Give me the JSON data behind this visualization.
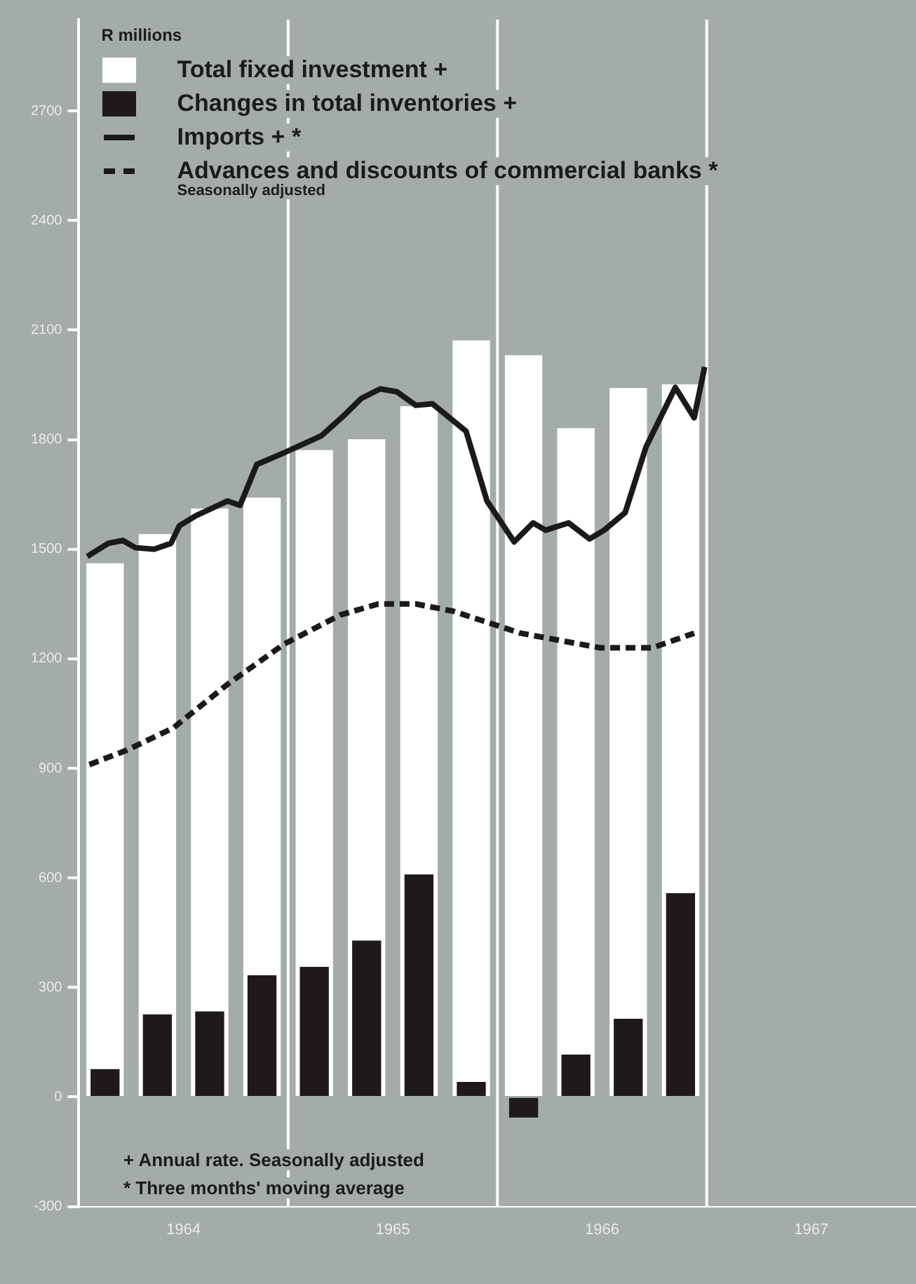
{
  "chart_data": {
    "type": "bar",
    "ylabel": "R millions",
    "xlim": [
      1964,
      1968
    ],
    "ylim": [
      -300,
      2950
    ],
    "xticks": [
      {
        "value": 1964.5,
        "label": "1964"
      },
      {
        "value": 1965.5,
        "label": "1965"
      },
      {
        "value": 1966.5,
        "label": "1966"
      },
      {
        "value": 1967.5,
        "label": "1967"
      }
    ],
    "yticks": [
      -300,
      0,
      300,
      600,
      900,
      1200,
      1500,
      1800,
      2100,
      2400,
      2700
    ],
    "series": [
      {
        "name": "Total fixed investment +",
        "color": "#ffffff",
        "x": [
          1964.125,
          1964.375,
          1964.625,
          1964.875,
          1965.125,
          1965.375,
          1965.625,
          1965.875,
          1966.125,
          1966.375,
          1966.625,
          1966.875
        ],
        "values": [
          1460,
          1540,
          1610,
          1640,
          1770,
          1800,
          1890,
          2070,
          2030,
          1830,
          1940,
          1950
        ]
      },
      {
        "name": "Changes in total inventories +",
        "color": "#1e1a1c",
        "x": [
          1964.125,
          1964.375,
          1964.625,
          1964.875,
          1965.125,
          1965.375,
          1965.625,
          1965.875,
          1966.125,
          1966.375,
          1966.625,
          1966.875
        ],
        "values": [
          75,
          225,
          233,
          332,
          355,
          427,
          608,
          40,
          -55,
          115,
          213,
          557
        ]
      },
      {
        "name": "Imports + *",
        "type": "line",
        "color": "#1a1a1a",
        "line_style": "solid",
        "x": [
          1964.04,
          1964.14,
          1964.21,
          1964.27,
          1964.36,
          1964.44,
          1964.48,
          1964.56,
          1964.71,
          1964.77,
          1964.85,
          1964.98,
          1965.16,
          1965.27,
          1965.35,
          1965.44,
          1965.52,
          1965.61,
          1965.69,
          1965.85,
          1965.95,
          1966.08,
          1966.17,
          1966.23,
          1966.34,
          1966.44,
          1966.51,
          1966.61,
          1966.71,
          1966.85,
          1966.94,
          1966.99
        ],
        "values": [
          1480,
          1516,
          1524,
          1504,
          1500,
          1516,
          1564,
          1592,
          1632,
          1620,
          1732,
          1764,
          1811,
          1868,
          1913,
          1939,
          1931,
          1894,
          1898,
          1823,
          1632,
          1520,
          1572,
          1552,
          1572,
          1528,
          1552,
          1600,
          1780,
          1943,
          1860,
          1999
        ]
      },
      {
        "name": "Advances and discounts of commercial banks *",
        "type": "line",
        "color": "#1a1a1a",
        "line_style": "dashed",
        "x": [
          1964.05,
          1964.23,
          1964.45,
          1964.71,
          1964.98,
          1965.25,
          1965.43,
          1965.61,
          1965.79,
          1966.11,
          1966.49,
          1966.74,
          1966.94
        ],
        "values": [
          910,
          950,
          1010,
          1130,
          1240,
          1320,
          1350,
          1350,
          1330,
          1270,
          1230,
          1230,
          1270
        ]
      }
    ],
    "ref_lines": [
      {
        "axis": "x",
        "value": 1965,
        "color": "#ffffff"
      },
      {
        "axis": "x",
        "value": 1966,
        "color": "#ffffff"
      },
      {
        "axis": "x",
        "value": 1967,
        "color": "#ffffff"
      }
    ],
    "annotations": [
      "Seasonally adjusted",
      "+ Annual rate. Seasonally adjusted",
      "* Three months' moving average"
    ],
    "legend": "top left",
    "grid": false,
    "marker": "none"
  }
}
